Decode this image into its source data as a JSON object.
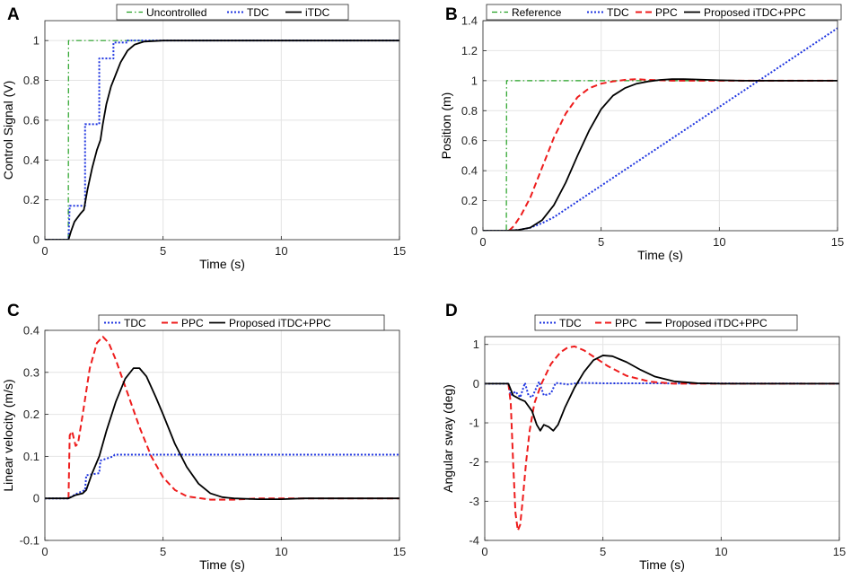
{
  "chart_data": [
    {
      "id": "A",
      "type": "line",
      "letter": "A",
      "xlabel": "Time (s)",
      "ylabel": "Control Signal (V)",
      "xlim": [
        0,
        15
      ],
      "ylim": [
        0,
        1.1
      ],
      "xticks": [
        0,
        5,
        10,
        15
      ],
      "yticks": [
        0,
        0.2,
        0.4,
        0.6,
        0.8,
        1
      ],
      "grid": true,
      "legend": "top",
      "series": [
        {
          "name": "Uncontrolled",
          "color": "#22a022",
          "style": "dashdot",
          "points": [
            [
              0,
              0
            ],
            [
              0.99,
              0
            ],
            [
              1,
              1
            ],
            [
              15,
              1
            ]
          ]
        },
        {
          "name": "TDC",
          "color": "#1f35e0",
          "style": "dotted",
          "points": [
            [
              0,
              0
            ],
            [
              1,
              0
            ],
            [
              1.05,
              0.17
            ],
            [
              1.7,
              0.17
            ],
            [
              1.7,
              0.58
            ],
            [
              2.3,
              0.58
            ],
            [
              2.3,
              0.91
            ],
            [
              2.9,
              0.91
            ],
            [
              2.9,
              0.99
            ],
            [
              3.5,
              0.99
            ],
            [
              3.5,
              1
            ],
            [
              15,
              1
            ]
          ]
        },
        {
          "name": "iTDC",
          "color": "#000000",
          "style": "solid",
          "points": [
            [
              0,
              0
            ],
            [
              1,
              0
            ],
            [
              1.1,
              0.04
            ],
            [
              1.25,
              0.09
            ],
            [
              1.5,
              0.13
            ],
            [
              1.65,
              0.15
            ],
            [
              1.8,
              0.25
            ],
            [
              2,
              0.36
            ],
            [
              2.2,
              0.45
            ],
            [
              2.35,
              0.5
            ],
            [
              2.45,
              0.58
            ],
            [
              2.6,
              0.68
            ],
            [
              2.8,
              0.77
            ],
            [
              3,
              0.83
            ],
            [
              3.2,
              0.89
            ],
            [
              3.5,
              0.95
            ],
            [
              3.8,
              0.98
            ],
            [
              4.2,
              0.995
            ],
            [
              5,
              1
            ],
            [
              15,
              1
            ]
          ]
        }
      ]
    },
    {
      "id": "B",
      "type": "line",
      "letter": "B",
      "xlabel": "Time (s)",
      "ylabel": "Position (m)",
      "xlim": [
        0,
        15
      ],
      "ylim": [
        0,
        1.4
      ],
      "xticks": [
        0,
        5,
        10,
        15
      ],
      "yticks": [
        0,
        0.2,
        0.4,
        0.6,
        0.8,
        1,
        1.2,
        1.4
      ],
      "grid": true,
      "legend": "top",
      "series": [
        {
          "name": "Reference",
          "color": "#22a022",
          "style": "dashdot",
          "points": [
            [
              0,
              0
            ],
            [
              0.99,
              0
            ],
            [
              1,
              1
            ],
            [
              15,
              1
            ]
          ]
        },
        {
          "name": "TDC",
          "color": "#1f35e0",
          "style": "dotted",
          "points": [
            [
              0,
              0
            ],
            [
              1,
              0
            ],
            [
              1.5,
              0.005
            ],
            [
              2,
              0.02
            ],
            [
              2.5,
              0.05
            ],
            [
              3,
              0.09
            ],
            [
              15,
              1.35
            ]
          ]
        },
        {
          "name": "PPC",
          "color": "#ee1c1c",
          "style": "dashed",
          "points": [
            [
              1.1,
              0
            ],
            [
              1.3,
              0.03
            ],
            [
              1.6,
              0.1
            ],
            [
              2,
              0.22
            ],
            [
              2.5,
              0.42
            ],
            [
              3,
              0.62
            ],
            [
              3.5,
              0.78
            ],
            [
              4,
              0.89
            ],
            [
              4.5,
              0.95
            ],
            [
              5,
              0.98
            ],
            [
              5.5,
              0.995
            ],
            [
              6,
              1.005
            ],
            [
              6.5,
              1.01
            ],
            [
              7,
              1.005
            ],
            [
              8,
              1
            ],
            [
              15,
              1
            ]
          ]
        },
        {
          "name": "Proposed  iTDC+PPC",
          "color": "#000000",
          "style": "solid",
          "points": [
            [
              0,
              0
            ],
            [
              1,
              0
            ],
            [
              1.5,
              0.005
            ],
            [
              2,
              0.02
            ],
            [
              2.5,
              0.07
            ],
            [
              3,
              0.17
            ],
            [
              3.5,
              0.32
            ],
            [
              4,
              0.5
            ],
            [
              4.5,
              0.67
            ],
            [
              5,
              0.81
            ],
            [
              5.5,
              0.9
            ],
            [
              6,
              0.95
            ],
            [
              6.5,
              0.98
            ],
            [
              7,
              0.995
            ],
            [
              7.5,
              1.005
            ],
            [
              8,
              1.01
            ],
            [
              8.5,
              1.01
            ],
            [
              9,
              1.008
            ],
            [
              10,
              1.003
            ],
            [
              11,
              1
            ],
            [
              15,
              1
            ]
          ]
        }
      ]
    },
    {
      "id": "C",
      "type": "line",
      "letter": "C",
      "xlabel": "Time (s)",
      "ylabel": "Linear velocity (m/s)",
      "xlim": [
        0,
        15
      ],
      "ylim": [
        -0.1,
        0.4
      ],
      "xticks": [
        0,
        5,
        10,
        15
      ],
      "yticks": [
        -0.1,
        0,
        0.1,
        0.2,
        0.3,
        0.4
      ],
      "grid": true,
      "legend": "top",
      "series": [
        {
          "name": "TDC",
          "color": "#1f35e0",
          "style": "dotted",
          "points": [
            [
              0,
              0
            ],
            [
              1,
              0
            ],
            [
              1.3,
              0.01
            ],
            [
              1.7,
              0.02
            ],
            [
              1.75,
              0.055
            ],
            [
              2.3,
              0.06
            ],
            [
              2.35,
              0.09
            ],
            [
              2.9,
              0.1
            ],
            [
              2.95,
              0.104
            ],
            [
              15,
              0.104
            ]
          ]
        },
        {
          "name": "PPC",
          "color": "#ee1c1c",
          "style": "dashed",
          "points": [
            [
              1,
              0
            ],
            [
              1.05,
              0.15
            ],
            [
              1.15,
              0.16
            ],
            [
              1.3,
              0.125
            ],
            [
              1.4,
              0.13
            ],
            [
              1.6,
              0.2
            ],
            [
              1.9,
              0.31
            ],
            [
              2.2,
              0.37
            ],
            [
              2.45,
              0.385
            ],
            [
              2.7,
              0.37
            ],
            [
              3,
              0.33
            ],
            [
              3.5,
              0.25
            ],
            [
              4,
              0.17
            ],
            [
              4.5,
              0.1
            ],
            [
              5,
              0.05
            ],
            [
              5.5,
              0.02
            ],
            [
              6,
              0.005
            ],
            [
              7,
              -0.003
            ],
            [
              8,
              -0.003
            ],
            [
              9,
              0
            ],
            [
              15,
              0
            ]
          ]
        },
        {
          "name": "Proposed  iTDC+PPC",
          "color": "#000000",
          "style": "solid",
          "points": [
            [
              0,
              0
            ],
            [
              1,
              0
            ],
            [
              1.3,
              0.008
            ],
            [
              1.6,
              0.012
            ],
            [
              1.75,
              0.02
            ],
            [
              2,
              0.06
            ],
            [
              2.3,
              0.1
            ],
            [
              2.6,
              0.16
            ],
            [
              3,
              0.23
            ],
            [
              3.4,
              0.285
            ],
            [
              3.75,
              0.31
            ],
            [
              4,
              0.31
            ],
            [
              4.3,
              0.29
            ],
            [
              4.7,
              0.24
            ],
            [
              5,
              0.2
            ],
            [
              5.5,
              0.13
            ],
            [
              6,
              0.075
            ],
            [
              6.5,
              0.035
            ],
            [
              7,
              0.012
            ],
            [
              7.5,
              0.003
            ],
            [
              8,
              0
            ],
            [
              9,
              -0.002
            ],
            [
              10,
              -0.002
            ],
            [
              11,
              0
            ],
            [
              15,
              0
            ]
          ]
        }
      ]
    },
    {
      "id": "D",
      "type": "line",
      "letter": "D",
      "xlabel": "Time (s)",
      "ylabel": "Angular sway (deg)",
      "xlim": [
        0,
        15
      ],
      "ylim": [
        -4,
        1.2
      ],
      "xticks": [
        0,
        5,
        10,
        15
      ],
      "yticks": [
        -4,
        -3,
        -2,
        -1,
        0,
        1
      ],
      "grid": true,
      "legend": "top",
      "series": [
        {
          "name": "TDC",
          "color": "#1f35e0",
          "style": "dotted",
          "points": [
            [
              0,
              0
            ],
            [
              1,
              0
            ],
            [
              1.1,
              -0.3
            ],
            [
              1.3,
              -0.2
            ],
            [
              1.5,
              -0.35
            ],
            [
              1.7,
              0.02
            ],
            [
              1.85,
              -0.3
            ],
            [
              2,
              -0.35
            ],
            [
              2.3,
              0.05
            ],
            [
              2.5,
              -0.3
            ],
            [
              2.8,
              -0.25
            ],
            [
              3,
              0.02
            ],
            [
              3.5,
              -0.02
            ],
            [
              4,
              0.02
            ],
            [
              5,
              0.01
            ],
            [
              15,
              0
            ]
          ]
        },
        {
          "name": "PPC",
          "color": "#ee1c1c",
          "style": "dashed",
          "points": [
            [
              1,
              0
            ],
            [
              1.1,
              -0.5
            ],
            [
              1.2,
              -2
            ],
            [
              1.3,
              -3.3
            ],
            [
              1.4,
              -3.75
            ],
            [
              1.5,
              -3.6
            ],
            [
              1.6,
              -3
            ],
            [
              1.75,
              -2
            ],
            [
              1.9,
              -1.2
            ],
            [
              2.1,
              -0.5
            ],
            [
              2.4,
              0
            ],
            [
              2.8,
              0.5
            ],
            [
              3.2,
              0.8
            ],
            [
              3.5,
              0.92
            ],
            [
              3.8,
              0.95
            ],
            [
              4.2,
              0.85
            ],
            [
              4.7,
              0.65
            ],
            [
              5.2,
              0.45
            ],
            [
              6,
              0.2
            ],
            [
              7,
              0.05
            ],
            [
              8,
              0
            ],
            [
              15,
              0
            ]
          ]
        },
        {
          "name": "Proposed  iTDC+PPC",
          "color": "#000000",
          "style": "solid",
          "points": [
            [
              0,
              0
            ],
            [
              1,
              0
            ],
            [
              1.2,
              -0.3
            ],
            [
              1.5,
              -0.4
            ],
            [
              1.7,
              -0.45
            ],
            [
              2,
              -0.7
            ],
            [
              2.2,
              -1.05
            ],
            [
              2.35,
              -1.2
            ],
            [
              2.5,
              -1.05
            ],
            [
              2.7,
              -1.1
            ],
            [
              2.9,
              -1.2
            ],
            [
              3.1,
              -1.05
            ],
            [
              3.4,
              -0.6
            ],
            [
              3.8,
              -0.1
            ],
            [
              4.2,
              0.3
            ],
            [
              4.6,
              0.6
            ],
            [
              5,
              0.72
            ],
            [
              5.4,
              0.7
            ],
            [
              6,
              0.55
            ],
            [
              6.6,
              0.35
            ],
            [
              7.2,
              0.18
            ],
            [
              8,
              0.06
            ],
            [
              9,
              0.01
            ],
            [
              10,
              0
            ],
            [
              15,
              0
            ]
          ]
        }
      ]
    }
  ]
}
